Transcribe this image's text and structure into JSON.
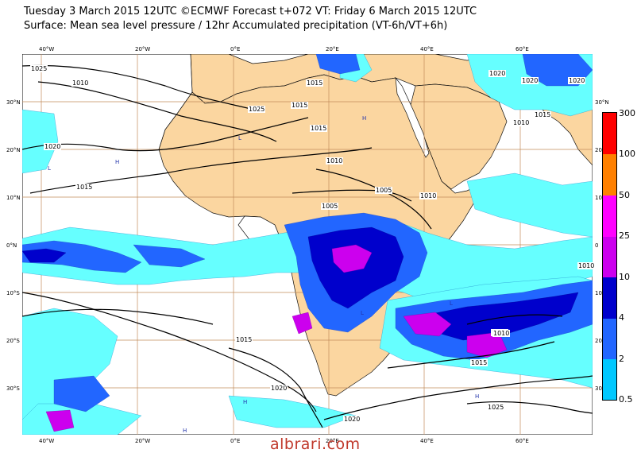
{
  "header": {
    "title_line1": "Tuesday 3 March 2015 12UTC ©ECMWF Forecast t+072 VT: Friday 6 March 2015 12UTC",
    "title_line2": "Surface: Mean sea level pressure / 12hr Accumulated precipitation (VT-6h/VT+6h)"
  },
  "axes": {
    "lon_top": [
      "40°W",
      "20°W",
      "0°E",
      "20°E",
      "40°E",
      "60°E"
    ],
    "lon_bottom": [
      "40°W",
      "20°W",
      "0°E",
      "20°E",
      "40°E",
      "60°E"
    ],
    "lat_left": [
      "30°N",
      "20°N",
      "10°N",
      "0°N",
      "10°S",
      "20°S",
      "30°S"
    ],
    "lat_right": [
      "30°N",
      "20",
      "10",
      "0",
      "10",
      "20",
      "30"
    ]
  },
  "colorbar": {
    "labels": [
      "300",
      "100",
      "50",
      "25",
      "10",
      "4",
      "2",
      "0.5"
    ],
    "colors": [
      "#ff0000",
      "#ff8000",
      "#ff00ff",
      "#cc00ee",
      "#0000cc",
      "#2266ff",
      "#00c8ff",
      "#66ffff"
    ]
  },
  "isobars": {
    "labels": [
      "1025",
      "1010",
      "1015",
      "1020",
      "1015",
      "1025",
      "1015",
      "1010",
      "1010",
      "1005",
      "1005",
      "1010",
      "1015",
      "1020",
      "1020",
      "1020",
      "1015",
      "1010",
      "1020",
      "1015",
      "1010",
      "1015",
      "1020",
      "1025",
      "1010"
    ]
  },
  "pressure_markers": {
    "high": "H",
    "low": "L"
  },
  "colors": {
    "ocean": "#ffffff",
    "land": "#fbd6a0",
    "grid": "#c28b5a",
    "isobar": "#000000",
    "precip_light": "#66ffff",
    "precip_medium": "#00c8ff",
    "precip_heavy": "#2266ff",
    "precip_very_heavy": "#0000cc",
    "precip_extreme": "#cc00ee"
  },
  "watermark": "albrari.com"
}
